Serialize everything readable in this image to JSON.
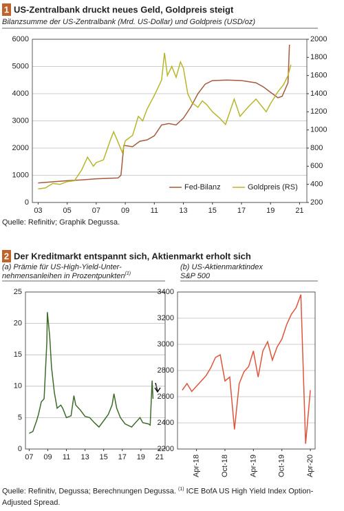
{
  "sections": [
    {
      "number": "1",
      "title": "US-Zentralbank druckt neues Geld, Goldpreis steigt"
    },
    {
      "number": "2",
      "title": "Der Kreditmarkt entspannt sich, Aktienmarkt erholt sich"
    }
  ],
  "footnote": {
    "text": "Quelle: Refinitiv, Degussa; Berechnungen Degussa. ",
    "note_mark": "(1)",
    "note_text": " ICE BofA US High Yield Index Option-Adjusted Spread."
  },
  "chart_data": [
    {
      "type": "line",
      "subtitle": [
        "Bilanzsumme der US-Zentralbank (Mrd. US-Dollar) und Goldpreis (USD/oz)"
      ],
      "source": "Quelle: Refinitiv; Graphik Degussa.",
      "legend": "lower right",
      "grid": true,
      "xlim": [
        2002.6,
        2021.5
      ],
      "xticks": [
        {
          "value": 2003,
          "label": "03"
        },
        {
          "value": 2005,
          "label": "05"
        },
        {
          "value": 2007,
          "label": "07"
        },
        {
          "value": 2009,
          "label": "09"
        },
        {
          "value": 2011,
          "label": "11"
        },
        {
          "value": 2013,
          "label": "13"
        },
        {
          "value": 2015,
          "label": "15"
        },
        {
          "value": 2017,
          "label": "17"
        },
        {
          "value": 2019,
          "label": "19"
        },
        {
          "value": 2021,
          "label": "21"
        }
      ],
      "ylim": [
        0,
        6000
      ],
      "yticks": [
        0,
        1000,
        2000,
        3000,
        4000,
        5000,
        6000
      ],
      "y2lim": [
        200,
        2000
      ],
      "y2ticks": [
        200,
        400,
        600,
        800,
        1000,
        1200,
        1400,
        1600,
        1800,
        2000
      ],
      "series": [
        {
          "name": "Fed-Bilanz",
          "color": "#a65a3c",
          "x": [
            2003,
            2004,
            2005,
            2006,
            2007,
            2008.5,
            2008.7,
            2008.9,
            2009.5,
            2010,
            2010.5,
            2011,
            2011.5,
            2012,
            2012.5,
            2013,
            2013.5,
            2014,
            2014.5,
            2015,
            2016,
            2017,
            2018,
            2018.5,
            2019,
            2019.5,
            2019.8,
            2020,
            2020.2,
            2020.3
          ],
          "values": [
            720,
            760,
            800,
            830,
            870,
            900,
            1000,
            2100,
            2050,
            2250,
            2300,
            2450,
            2850,
            2900,
            2850,
            3100,
            3500,
            4000,
            4350,
            4480,
            4500,
            4480,
            4400,
            4250,
            4050,
            3850,
            3900,
            4150,
            4400,
            5800
          ]
        },
        {
          "name": "Goldpreis (RS)",
          "color": "#b8b52a",
          "axis": "y2",
          "x": [
            2003,
            2003.5,
            2004,
            2004.5,
            2005,
            2005.5,
            2006,
            2006.4,
            2006.8,
            2007,
            2007.5,
            2008,
            2008.2,
            2008.8,
            2009,
            2009.5,
            2009.9,
            2010.2,
            2010.5,
            2011,
            2011.5,
            2011.7,
            2011.9,
            2012.2,
            2012.5,
            2012.8,
            2013,
            2013.3,
            2013.6,
            2014,
            2014.3,
            2014.6,
            2015,
            2015.5,
            2015.9,
            2016.5,
            2016.9,
            2017.5,
            2018,
            2018.7,
            2019,
            2019.5,
            2019.9,
            2020.2,
            2020.4
          ],
          "values": [
            350,
            360,
            410,
            400,
            430,
            440,
            560,
            700,
            600,
            640,
            670,
            900,
            980,
            750,
            880,
            940,
            1150,
            1100,
            1230,
            1380,
            1550,
            1850,
            1600,
            1700,
            1580,
            1750,
            1680,
            1400,
            1300,
            1250,
            1320,
            1280,
            1200,
            1130,
            1060,
            1340,
            1150,
            1260,
            1340,
            1200,
            1290,
            1420,
            1500,
            1600,
            1720
          ]
        }
      ]
    },
    {
      "type": "line",
      "subtitle": [
        "(a) Prämie für US-High-Yield-Unter-",
        "nehmensanleihen in Prozentpunkten"
      ],
      "subtitle_note": "(1)",
      "grid": true,
      "color": "#3d6b2a",
      "xlim": [
        2006.6,
        2021.6
      ],
      "xticks": [
        {
          "value": 2007,
          "label": "07"
        },
        {
          "value": 2009,
          "label": "09"
        },
        {
          "value": 2011,
          "label": "11"
        },
        {
          "value": 2013,
          "label": "13"
        },
        {
          "value": 2015,
          "label": "15"
        },
        {
          "value": 2017,
          "label": "17"
        },
        {
          "value": 2019,
          "label": "19"
        },
        {
          "value": 2021,
          "label": "21"
        }
      ],
      "ylim": [
        0,
        25
      ],
      "yticks": [
        0,
        5,
        10,
        15,
        20,
        25
      ],
      "x": [
        2007,
        2007.4,
        2007.8,
        2008,
        2008.3,
        2008.6,
        2008.9,
        2008.95,
        2009.2,
        2009.4,
        2009.7,
        2010,
        2010.4,
        2010.6,
        2011,
        2011.5,
        2011.8,
        2012,
        2012.5,
        2013,
        2013.5,
        2014,
        2014.5,
        2015,
        2015.5,
        2015.9,
        2016.1,
        2016.4,
        2016.8,
        2017.3,
        2018,
        2018.9,
        2019.2,
        2019.8,
        2020,
        2020.2,
        2020.3
      ],
      "values": [
        2.5,
        2.8,
        4.5,
        5.5,
        7.5,
        8,
        17,
        21.8,
        18,
        13,
        9,
        6.5,
        7,
        6.5,
        5,
        5.3,
        8.5,
        7,
        6.2,
        5.2,
        5,
        4.2,
        3.5,
        4.5,
        5.5,
        7,
        8.8,
        6.5,
        5,
        4,
        3.5,
        5,
        4.2,
        4,
        3.8,
        10.9,
        8
      ]
    },
    {
      "type": "line",
      "subtitle": [
        "(b) US-Aktienmarktindex",
        "S&P 500"
      ],
      "grid": true,
      "color": "#e0533a",
      "xtick_rotation": -90,
      "xlim": [
        "2017-12",
        "2020-05"
      ],
      "xticks": [
        {
          "value": "2018-04",
          "label": "Apr-18"
        },
        {
          "value": "2018-10",
          "label": "Oct-18"
        },
        {
          "value": "2019-04",
          "label": "Apr-19"
        },
        {
          "value": "2019-10",
          "label": "Oct-19"
        },
        {
          "value": "2020-04",
          "label": "Apr-20"
        }
      ],
      "ylim": [
        2200,
        3400
      ],
      "yticks": [
        2200,
        2400,
        2600,
        2800,
        3000,
        3200,
        3400
      ],
      "x": [
        "2018-01",
        "2018-02",
        "2018-03",
        "2018-04",
        "2018-05",
        "2018-06",
        "2018-07",
        "2018-08",
        "2018-09",
        "2018-10",
        "2018-11",
        "2018-12",
        "2019-01",
        "2019-02",
        "2019-03",
        "2019-04",
        "2019-05",
        "2019-06",
        "2019-07",
        "2019-08",
        "2019-09",
        "2019-10",
        "2019-11",
        "2019-12",
        "2020-01",
        "2020-02",
        "2020-03",
        "2020-04"
      ],
      "values": [
        2650,
        2700,
        2640,
        2680,
        2720,
        2760,
        2820,
        2900,
        2920,
        2720,
        2750,
        2350,
        2700,
        2790,
        2830,
        2950,
        2750,
        2950,
        3020,
        2880,
        2980,
        3040,
        3150,
        3230,
        3280,
        3380,
        2240,
        2650
      ]
    }
  ]
}
